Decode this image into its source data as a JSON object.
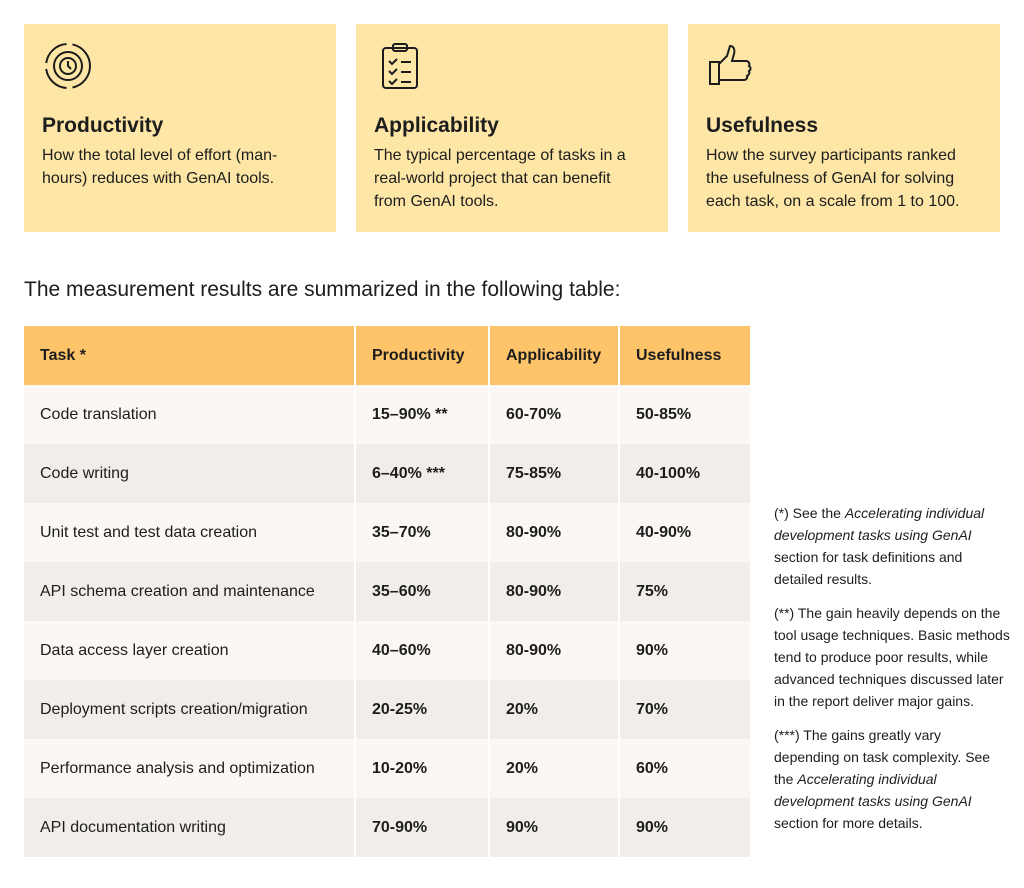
{
  "cards": [
    {
      "title": "Productivity",
      "text": "How the total level of effort (man-hours) reduces with GenAI tools."
    },
    {
      "title": "Applicability",
      "text": "The typical percentage of tasks in a real-world project that can benefit from GenAI tools."
    },
    {
      "title": "Usefulness",
      "text": "How the survey participants ranked the usefulness of GenAI for solving each task, on a scale from  1 to 100."
    }
  ],
  "intro": "The measurement results are summarized in the following table:",
  "table": {
    "header": [
      "Task *",
      "Productivity",
      "Applicability",
      "Usefulness"
    ],
    "rows": [
      [
        "Code translation",
        "15–90% **",
        "60-70%",
        "50-85%"
      ],
      [
        "Code writing",
        "6–40% ***",
        "75-85%",
        "40-100%"
      ],
      [
        "Unit test and test data creation",
        "35–70%",
        "80-90%",
        "40-90%"
      ],
      [
        "API schema creation and maintenance",
        "35–60%",
        "80-90%",
        "75%"
      ],
      [
        "Data access layer creation",
        "40–60%",
        "80-90%",
        "90%"
      ],
      [
        "Deployment scripts creation/migration",
        "20-25%",
        "20%",
        "70%"
      ],
      [
        "Performance analysis and optimization",
        "10-20%",
        "20%",
        "60%"
      ],
      [
        "API documentation writing",
        "70-90%",
        "90%",
        "90%"
      ]
    ]
  },
  "notes": [
    {
      "parts": [
        {
          "text": "(*) See the ",
          "italic": false
        },
        {
          "text": "Accelerating individual development tasks using GenAI",
          "italic": true
        },
        {
          "text": " section for task definitions and detailed results.",
          "italic": false
        }
      ]
    },
    {
      "parts": [
        {
          "text": "(**) The gain heavily depends on the tool usage techniques. Basic methods tend to produce poor results, while advanced techniques discussed later in the report deliver major gains.",
          "italic": false
        }
      ]
    },
    {
      "parts": [
        {
          "text": "(***) The gains greatly vary depending on task complexity. See the ",
          "italic": false
        },
        {
          "text": "Accelerating individual development tasks using GenAI",
          "italic": true
        },
        {
          "text": " section for more details.",
          "italic": false
        }
      ]
    }
  ]
}
